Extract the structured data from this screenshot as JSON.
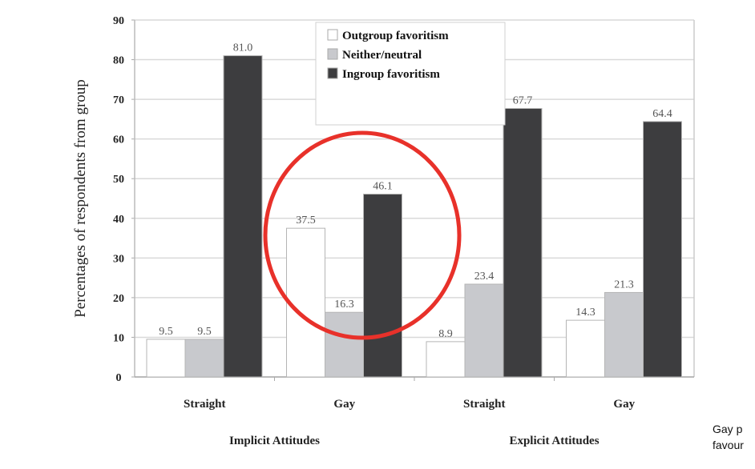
{
  "chart_data": {
    "type": "bar",
    "title": "",
    "ylabel": "Percentages of respondents from group",
    "xlabel": "",
    "ylim": [
      0,
      90
    ],
    "yticks": [
      0,
      10,
      20,
      30,
      40,
      50,
      60,
      70,
      80,
      90
    ],
    "grid": true,
    "legend_position": "top-center (inside plot)",
    "categories": [
      "Straight",
      "Gay",
      "Straight",
      "Gay"
    ],
    "category_groups": [
      {
        "label": "Implicit Attitudes",
        "categories": [
          "Straight",
          "Gay"
        ]
      },
      {
        "label": "Explicit Attitudes",
        "categories": [
          "Straight",
          "Gay"
        ]
      }
    ],
    "series": [
      {
        "name": "Outgroup favoritism",
        "color": "#ffffff",
        "values": [
          9.5,
          37.5,
          8.9,
          14.3
        ],
        "labels": [
          "9.5",
          "37.5",
          "8.9",
          "14.3"
        ]
      },
      {
        "name": "Neither/neutral",
        "color": "#c8c9cd",
        "values": [
          9.5,
          16.3,
          23.4,
          21.3
        ],
        "labels": [
          "9.5",
          "16.3",
          "23.4",
          "21.3"
        ]
      },
      {
        "name": "Ingroup favoritism",
        "color": "#3d3d3f",
        "values": [
          81.0,
          46.1,
          67.7,
          64.4
        ],
        "labels": [
          "81.0",
          "46.1",
          "67.7",
          "64.4"
        ]
      }
    ],
    "annotations": [
      {
        "type": "circle",
        "color": "#e8312a",
        "target": "Implicit Attitudes / Gay group",
        "description": "red hand-drawn circle highlighting the gay implicit-attitude bars"
      }
    ]
  },
  "side_note": {
    "line1": "Gay p",
    "line2": "favour"
  }
}
